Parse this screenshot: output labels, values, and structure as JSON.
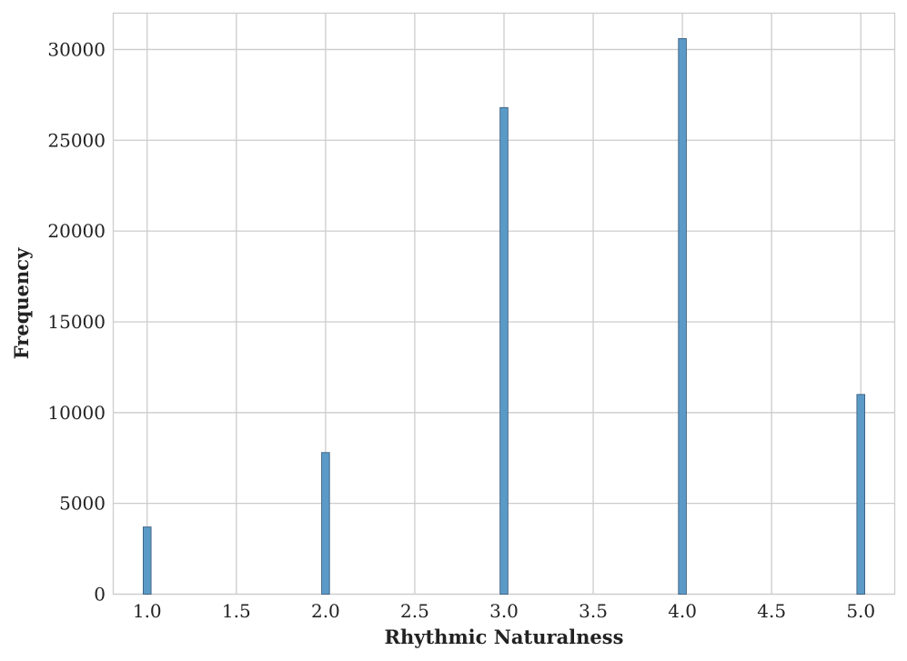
{
  "chart_data": {
    "type": "bar",
    "title": "",
    "xlabel": "Rhythmic Naturalness",
    "ylabel": "Frequency",
    "x": [
      1.0,
      2.0,
      3.0,
      4.0,
      5.0
    ],
    "values": [
      3700,
      7800,
      26800,
      30600,
      11000
    ],
    "xlim": [
      0.81,
      5.19
    ],
    "ylim": [
      0,
      32000
    ],
    "xticks": [
      1.0,
      1.5,
      2.0,
      2.5,
      3.0,
      3.5,
      4.0,
      4.5,
      5.0
    ],
    "xtick_labels": [
      "1.0",
      "1.5",
      "2.0",
      "2.5",
      "3.0",
      "3.5",
      "4.0",
      "4.5",
      "5.0"
    ],
    "yticks": [
      0,
      5000,
      10000,
      15000,
      20000,
      25000,
      30000
    ],
    "ytick_labels": [
      "0",
      "5000",
      "10000",
      "15000",
      "20000",
      "25000",
      "30000"
    ],
    "bar_color": "#5b9ac7",
    "bar_edge_color": "#3a5f80",
    "grid": true,
    "legend": "none"
  }
}
